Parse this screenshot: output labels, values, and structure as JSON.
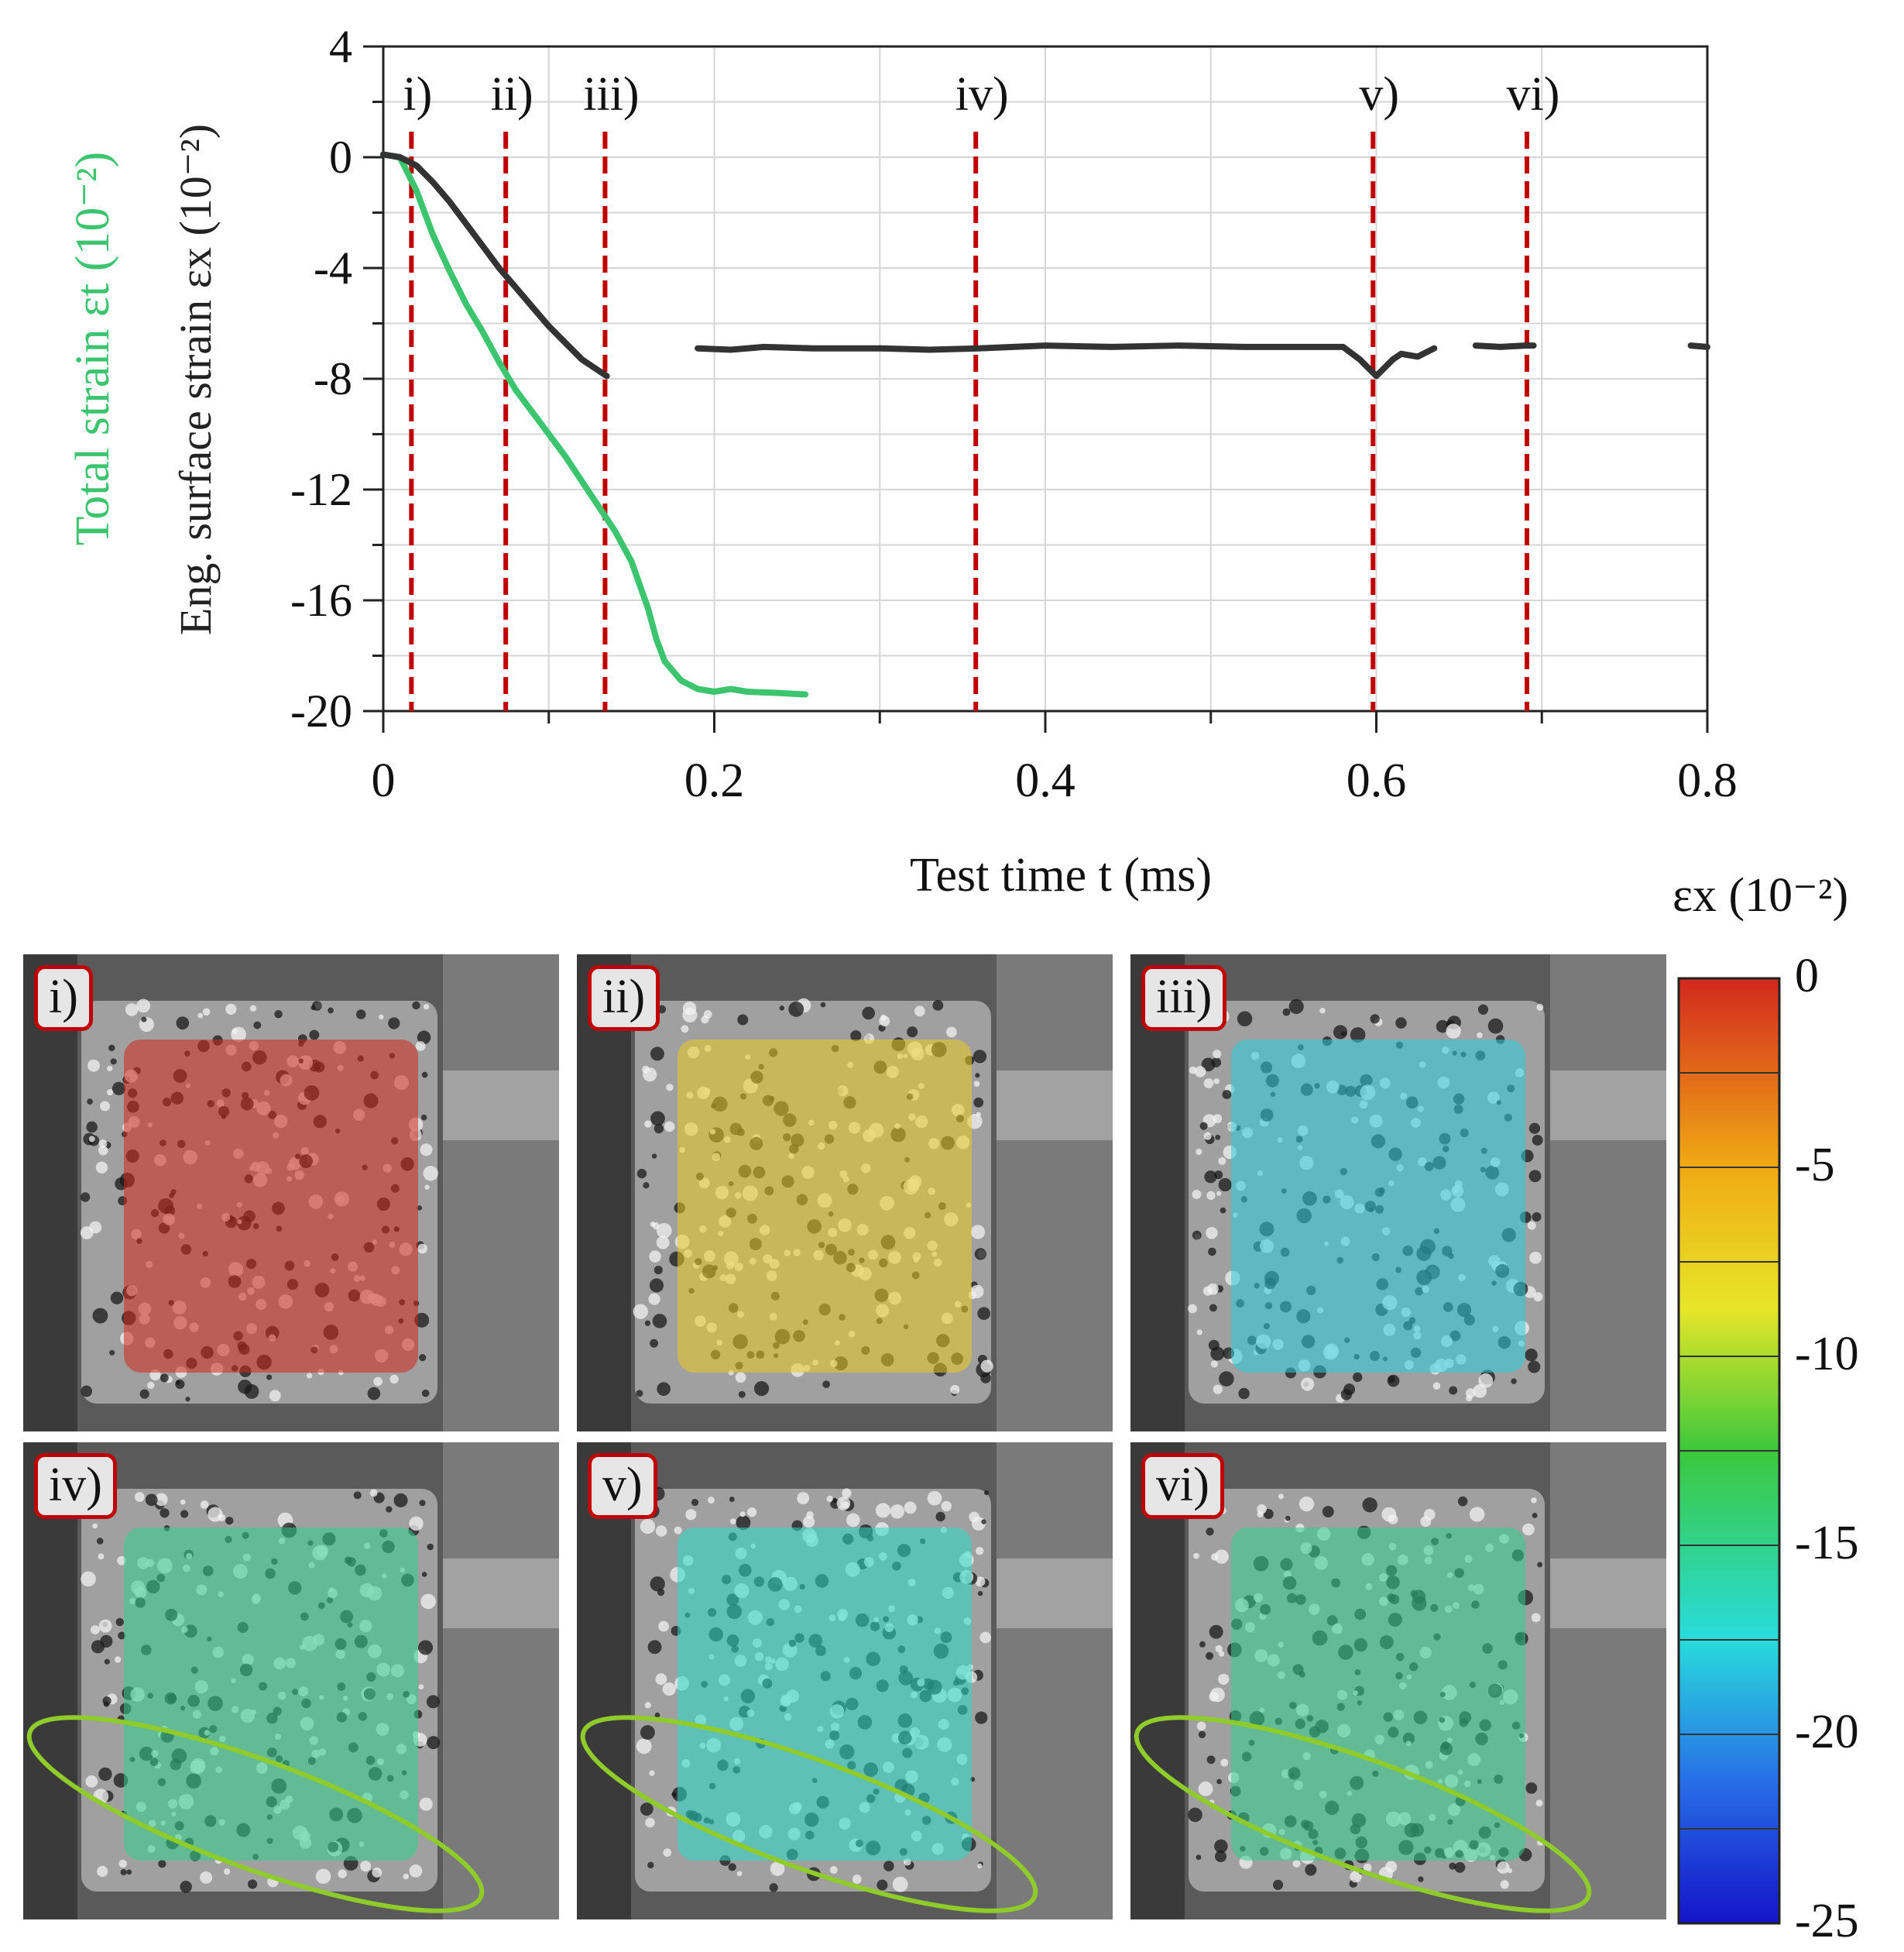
{
  "chart_data": {
    "type": "line",
    "xlabel": "Test time t (ms)",
    "ylabel_left_main": "Eng. surface strain εx (10⁻²)",
    "ylabel_left_secondary": "Total strain εt (10⁻²)",
    "xlim": [
      0,
      0.8
    ],
    "ylim": [
      -20,
      4
    ],
    "x_ticks": [
      "0",
      "0.2",
      "0.4",
      "0.6",
      "0.8"
    ],
    "y_ticks": [
      "4",
      "0",
      "-4",
      "-8",
      "-12",
      "-16",
      "-20"
    ],
    "grid": true,
    "series": [
      {
        "name": "Total strain εt",
        "color": "#3cc46e",
        "segments": [
          [
            [
              0,
              0.1
            ],
            [
              0.01,
              0
            ],
            [
              0.02,
              -1.2
            ],
            [
              0.03,
              -2.8
            ],
            [
              0.04,
              -4.1
            ],
            [
              0.05,
              -5.3
            ],
            [
              0.06,
              -6.3
            ],
            [
              0.07,
              -7.4
            ],
            [
              0.08,
              -8.4
            ],
            [
              0.09,
              -9.2
            ],
            [
              0.1,
              -10.0
            ],
            [
              0.11,
              -10.8
            ],
            [
              0.12,
              -11.7
            ],
            [
              0.13,
              -12.6
            ],
            [
              0.14,
              -13.5
            ],
            [
              0.15,
              -14.6
            ],
            [
              0.16,
              -16.3
            ],
            [
              0.165,
              -17.4
            ],
            [
              0.17,
              -18.2
            ],
            [
              0.18,
              -18.9
            ],
            [
              0.19,
              -19.2
            ],
            [
              0.2,
              -19.3
            ],
            [
              0.21,
              -19.2
            ],
            [
              0.22,
              -19.3
            ],
            [
              0.24,
              -19.35
            ],
            [
              0.255,
              -19.4
            ]
          ]
        ]
      },
      {
        "name": "Eng. surface strain εx",
        "color": "#333333",
        "segments": [
          [
            [
              0,
              0.1
            ],
            [
              0.01,
              0
            ],
            [
              0.02,
              -0.3
            ],
            [
              0.03,
              -0.9
            ],
            [
              0.04,
              -1.6
            ],
            [
              0.05,
              -2.4
            ],
            [
              0.06,
              -3.2
            ],
            [
              0.07,
              -4.0
            ],
            [
              0.08,
              -4.7
            ],
            [
              0.09,
              -5.4
            ],
            [
              0.1,
              -6.1
            ],
            [
              0.11,
              -6.7
            ],
            [
              0.12,
              -7.3
            ],
            [
              0.13,
              -7.7
            ],
            [
              0.135,
              -7.9
            ]
          ],
          [
            [
              0.19,
              -6.9
            ],
            [
              0.21,
              -6.95
            ],
            [
              0.23,
              -6.85
            ],
            [
              0.26,
              -6.9
            ],
            [
              0.3,
              -6.9
            ],
            [
              0.33,
              -6.95
            ],
            [
              0.36,
              -6.9
            ],
            [
              0.4,
              -6.8
            ],
            [
              0.44,
              -6.85
            ],
            [
              0.48,
              -6.8
            ],
            [
              0.52,
              -6.85
            ],
            [
              0.58,
              -6.85
            ],
            [
              0.59,
              -7.3
            ],
            [
              0.6,
              -7.9
            ],
            [
              0.61,
              -7.3
            ],
            [
              0.615,
              -7.1
            ],
            [
              0.625,
              -7.2
            ],
            [
              0.635,
              -6.9
            ]
          ],
          [
            [
              0.66,
              -6.8
            ],
            [
              0.675,
              -6.85
            ],
            [
              0.69,
              -6.8
            ],
            [
              0.695,
              -6.8
            ]
          ],
          [
            [
              0.79,
              -6.8
            ],
            [
              0.8,
              -6.85
            ]
          ]
        ]
      }
    ],
    "markers": [
      {
        "label": "i)",
        "x": 0.017
      },
      {
        "label": "ii)",
        "x": 0.074
      },
      {
        "label": "iii)",
        "x": 0.134
      },
      {
        "label": "iv)",
        "x": 0.358
      },
      {
        "label": "v)",
        "x": 0.598
      },
      {
        "label": "vi)",
        "x": 0.691
      }
    ],
    "marker_color": "#c00000"
  },
  "panels": [
    {
      "tag": "i)",
      "strain_level": 0
    },
    {
      "tag": "ii)",
      "strain_level": -7
    },
    {
      "tag": "iii)",
      "strain_level": -18
    },
    {
      "tag": "iv)",
      "strain_level": -15
    },
    {
      "tag": "v)",
      "strain_level": -17
    },
    {
      "tag": "vi)",
      "strain_level": -15
    }
  ],
  "colorbar": {
    "title": "εx (10⁻²)",
    "ticks": [
      "0",
      "-5",
      "-10",
      "-15",
      "-20",
      "-25"
    ],
    "range": [
      0,
      -25
    ]
  },
  "colors": {
    "crack_ellipse": "#8fcb2a",
    "tag_border": "#c00000"
  }
}
